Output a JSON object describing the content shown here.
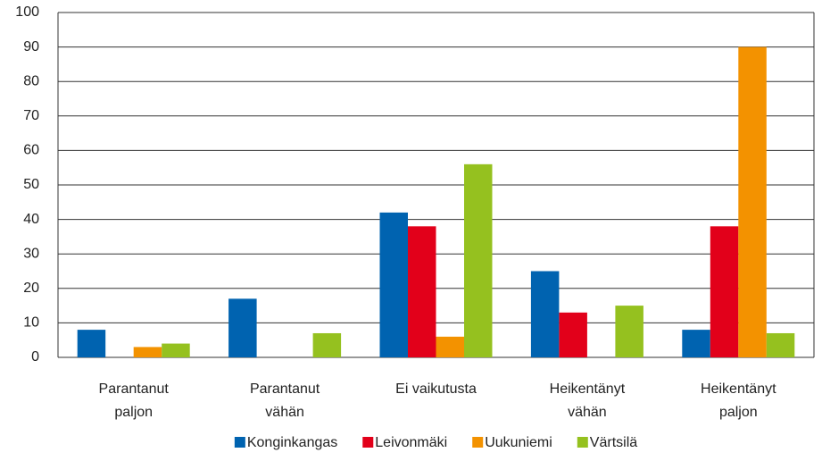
{
  "chart_data": {
    "type": "bar",
    "categories": [
      [
        "Parantanut",
        "paljon"
      ],
      [
        "Parantanut",
        "vähän"
      ],
      [
        "Ei vaikutusta"
      ],
      [
        "Heikentänyt",
        "vähän"
      ],
      [
        "Heikentänyt",
        "paljon"
      ]
    ],
    "series": [
      {
        "name": "Konginkangas",
        "color": "#0063b0",
        "values": [
          8,
          17,
          42,
          25,
          8
        ]
      },
      {
        "name": "Leivonmäki",
        "color": "#e2001a",
        "values": [
          0,
          0,
          38,
          13,
          38
        ]
      },
      {
        "name": "Uukuniemi",
        "color": "#f39200",
        "values": [
          3,
          0,
          6,
          0,
          90
        ]
      },
      {
        "name": "Värtsilä",
        "color": "#95c11f",
        "values": [
          4,
          7,
          56,
          15,
          7
        ]
      }
    ],
    "ylim": [
      0,
      100
    ],
    "yticks": [
      0,
      10,
      20,
      30,
      40,
      50,
      60,
      70,
      80,
      90,
      100
    ],
    "grid": true,
    "legend": "bottom"
  }
}
